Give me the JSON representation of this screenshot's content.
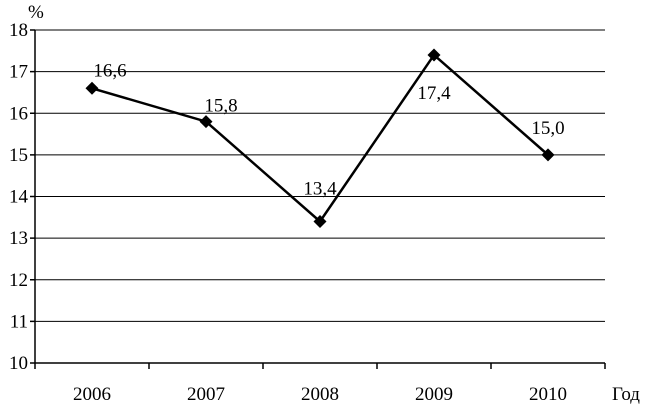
{
  "chart_data": {
    "type": "line",
    "categories": [
      "2006",
      "2007",
      "2008",
      "2009",
      "2010"
    ],
    "series": [
      {
        "values": [
          16.6,
          15.8,
          13.4,
          17.4,
          15.0
        ]
      }
    ],
    "data_labels": [
      "16,6",
      "15,8",
      "13,4",
      "17,4",
      "15,0"
    ],
    "y_ticks": [
      "10",
      "11",
      "12",
      "13",
      "14",
      "15",
      "16",
      "17",
      "18"
    ],
    "ylabel": "%",
    "xlabel": "Год",
    "ylim": [
      10,
      18
    ],
    "grid": true,
    "marker": "diamond",
    "line_color": "#000000"
  }
}
